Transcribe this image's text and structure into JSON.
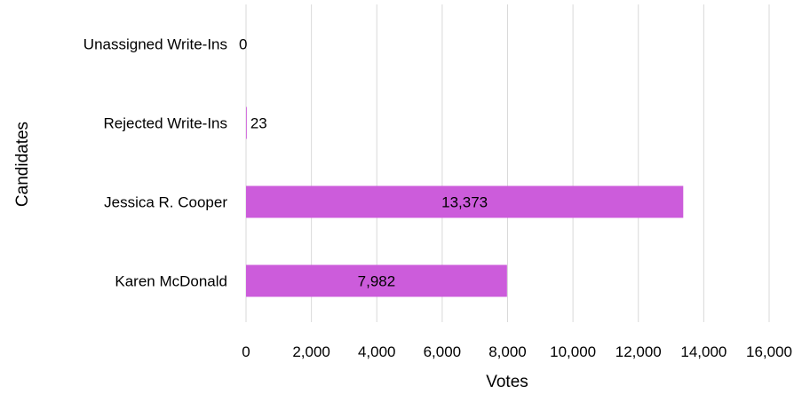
{
  "chart_data": {
    "type": "bar",
    "orientation": "horizontal",
    "categories": [
      "Unassigned Write-Ins",
      "Rejected Write-Ins",
      "Jessica R. Cooper",
      "Karen McDonald"
    ],
    "values": [
      0,
      23,
      13373,
      7982
    ],
    "data_labels": [
      "0",
      "23",
      "13,373",
      "7,982"
    ],
    "xlabel": "Votes",
    "ylabel": "Candidates",
    "xlim": [
      0,
      16000
    ],
    "x_ticks": [
      0,
      2000,
      4000,
      6000,
      8000,
      10000,
      12000,
      14000,
      16000
    ],
    "x_tick_labels": [
      "0",
      "2,000",
      "4,000",
      "6,000",
      "8,000",
      "10,000",
      "12,000",
      "14,000",
      "16,000"
    ],
    "grid": "vertical",
    "legend": "none",
    "bar_color": "#CC5CDB",
    "grid_color": "#D9D9D9"
  }
}
